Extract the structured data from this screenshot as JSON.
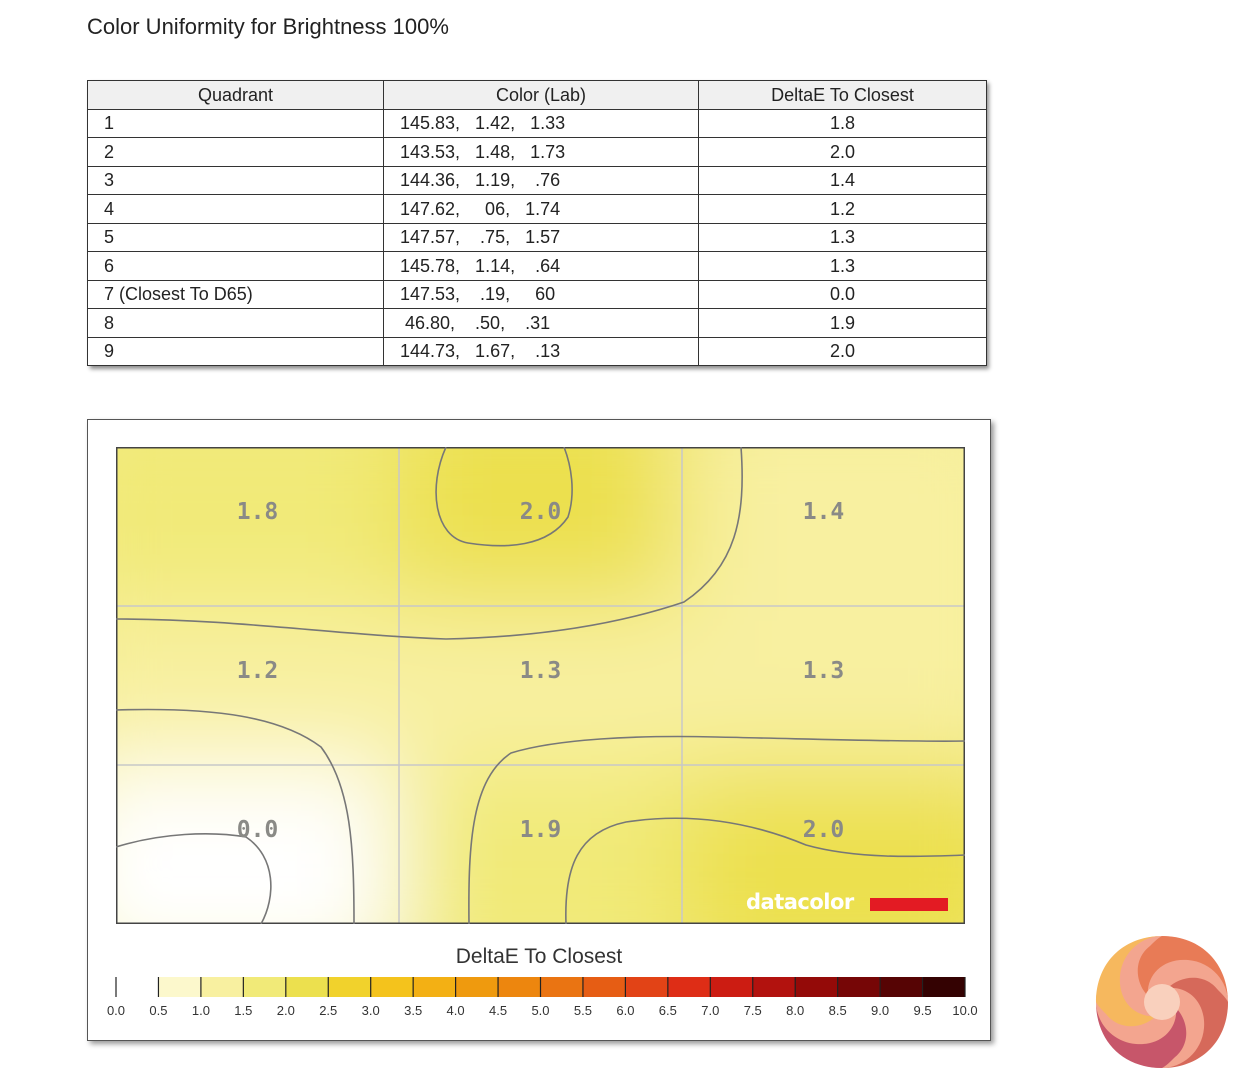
{
  "title": "Color Uniformity for Brightness 100%",
  "table": {
    "headers": [
      "Quadrant",
      "Color (Lab)",
      "DeltaE To Closest"
    ],
    "rows": [
      {
        "quadrant": "1",
        "lab": "145.83,   1.42,   1.33",
        "deltae": "1.8"
      },
      {
        "quadrant": "2",
        "lab": "143.53,   1.48,   1.73",
        "deltae": "2.0"
      },
      {
        "quadrant": "3",
        "lab": "144.36,   1.19,    .76",
        "deltae": "1.4"
      },
      {
        "quadrant": "4",
        "lab": "147.62,     06,   1.74",
        "deltae": "1.2"
      },
      {
        "quadrant": "5",
        "lab": "147.57,    .75,   1.57",
        "deltae": "1.3"
      },
      {
        "quadrant": "6",
        "lab": "145.78,   1.14,    .64",
        "deltae": "1.3"
      },
      {
        "quadrant": "7 (Closest To D65)",
        "lab": "147.53,    .19,     60",
        "deltae": "0.0"
      },
      {
        "quadrant": "8",
        "lab": " 46.80,    .50,    .31",
        "deltae": "1.9"
      },
      {
        "quadrant": "9",
        "lab": "144.73,   1.67,    .13",
        "deltae": "2.0"
      }
    ]
  },
  "chart_data": {
    "type": "heatmap",
    "title": "",
    "legend_title": "DeltaE To Closest",
    "grid": [
      [
        "1.8",
        "2.0",
        "1.4"
      ],
      [
        "1.2",
        "1.3",
        "1.3"
      ],
      [
        "0.0",
        "1.9",
        "2.0"
      ]
    ],
    "values": [
      [
        1.8,
        2.0,
        1.4
      ],
      [
        1.2,
        1.3,
        1.3
      ],
      [
        0.0,
        1.9,
        2.0
      ]
    ],
    "scale_range": [
      0.0,
      10.0
    ],
    "scale_ticks": [
      "0.0",
      "0.5",
      "1.0",
      "1.5",
      "2.0",
      "2.5",
      "3.0",
      "3.5",
      "4.0",
      "4.5",
      "5.0",
      "5.5",
      "6.0",
      "6.5",
      "7.0",
      "7.5",
      "8.0",
      "8.5",
      "9.0",
      "9.5",
      "10.0"
    ],
    "scale_colors": [
      "#ffffff",
      "#fcf8cc",
      "#f8f0a0",
      "#f1ea78",
      "#ece04e",
      "#f1d22c",
      "#f4c31c",
      "#f3b014",
      "#ef9a0e",
      "#ed860e",
      "#ea7412",
      "#e65d14",
      "#e24316",
      "#de2d16",
      "#cc1c12",
      "#b2120e",
      "#940a08",
      "#760606",
      "#560404",
      "#340202"
    ],
    "grid_lines": true,
    "legend_position": "bottom"
  },
  "watermark": "datacolor",
  "colors": {
    "header_bg": "#f0f0f0",
    "grid_line": "#c8c8c8",
    "contour": "#777777",
    "cell_label": "#8a8a86",
    "brand_red": "#e31b23"
  }
}
